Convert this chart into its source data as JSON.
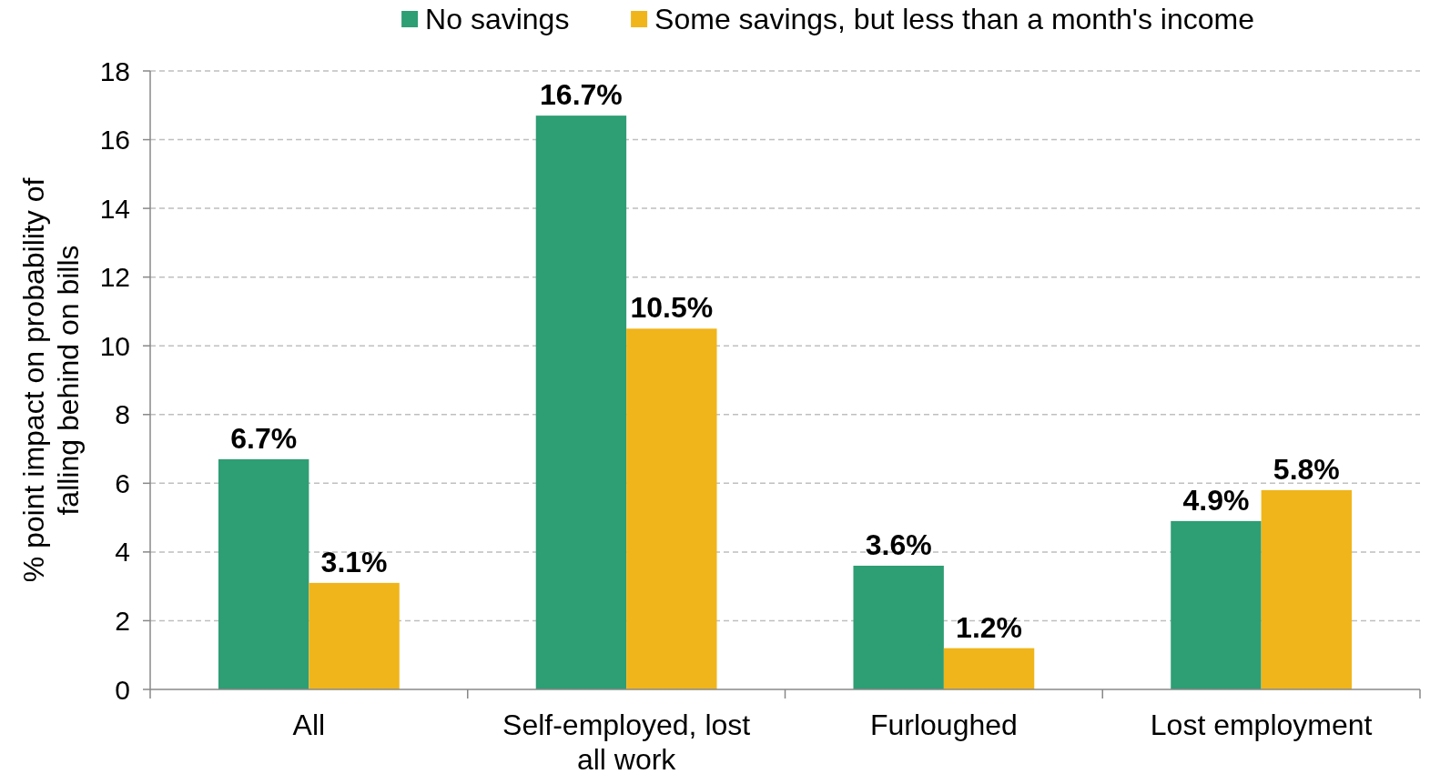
{
  "chart_data": {
    "type": "bar",
    "ylabel": "% point impact on probability of falling behind on bills",
    "categories": [
      "All",
      "Self-employed, lost all work",
      "Furloughed",
      "Lost employment"
    ],
    "series": [
      {
        "name": "No savings",
        "color": "#2e9e74",
        "values": [
          6.7,
          16.7,
          3.6,
          4.9
        ],
        "value_labels": [
          "6.7%",
          "16.7%",
          "3.6%",
          "4.9%"
        ]
      },
      {
        "name": "Some savings, but less than a month's income",
        "color": "#f0b51a",
        "values": [
          3.1,
          10.5,
          1.2,
          5.8
        ],
        "value_labels": [
          "3.1%",
          "10.5%",
          "1.2%",
          "5.8%"
        ]
      }
    ],
    "ylim": [
      0,
      18
    ],
    "yticks": [
      0,
      2,
      4,
      6,
      8,
      10,
      12,
      14,
      16,
      18
    ],
    "grid": "y",
    "legend": "top"
  }
}
